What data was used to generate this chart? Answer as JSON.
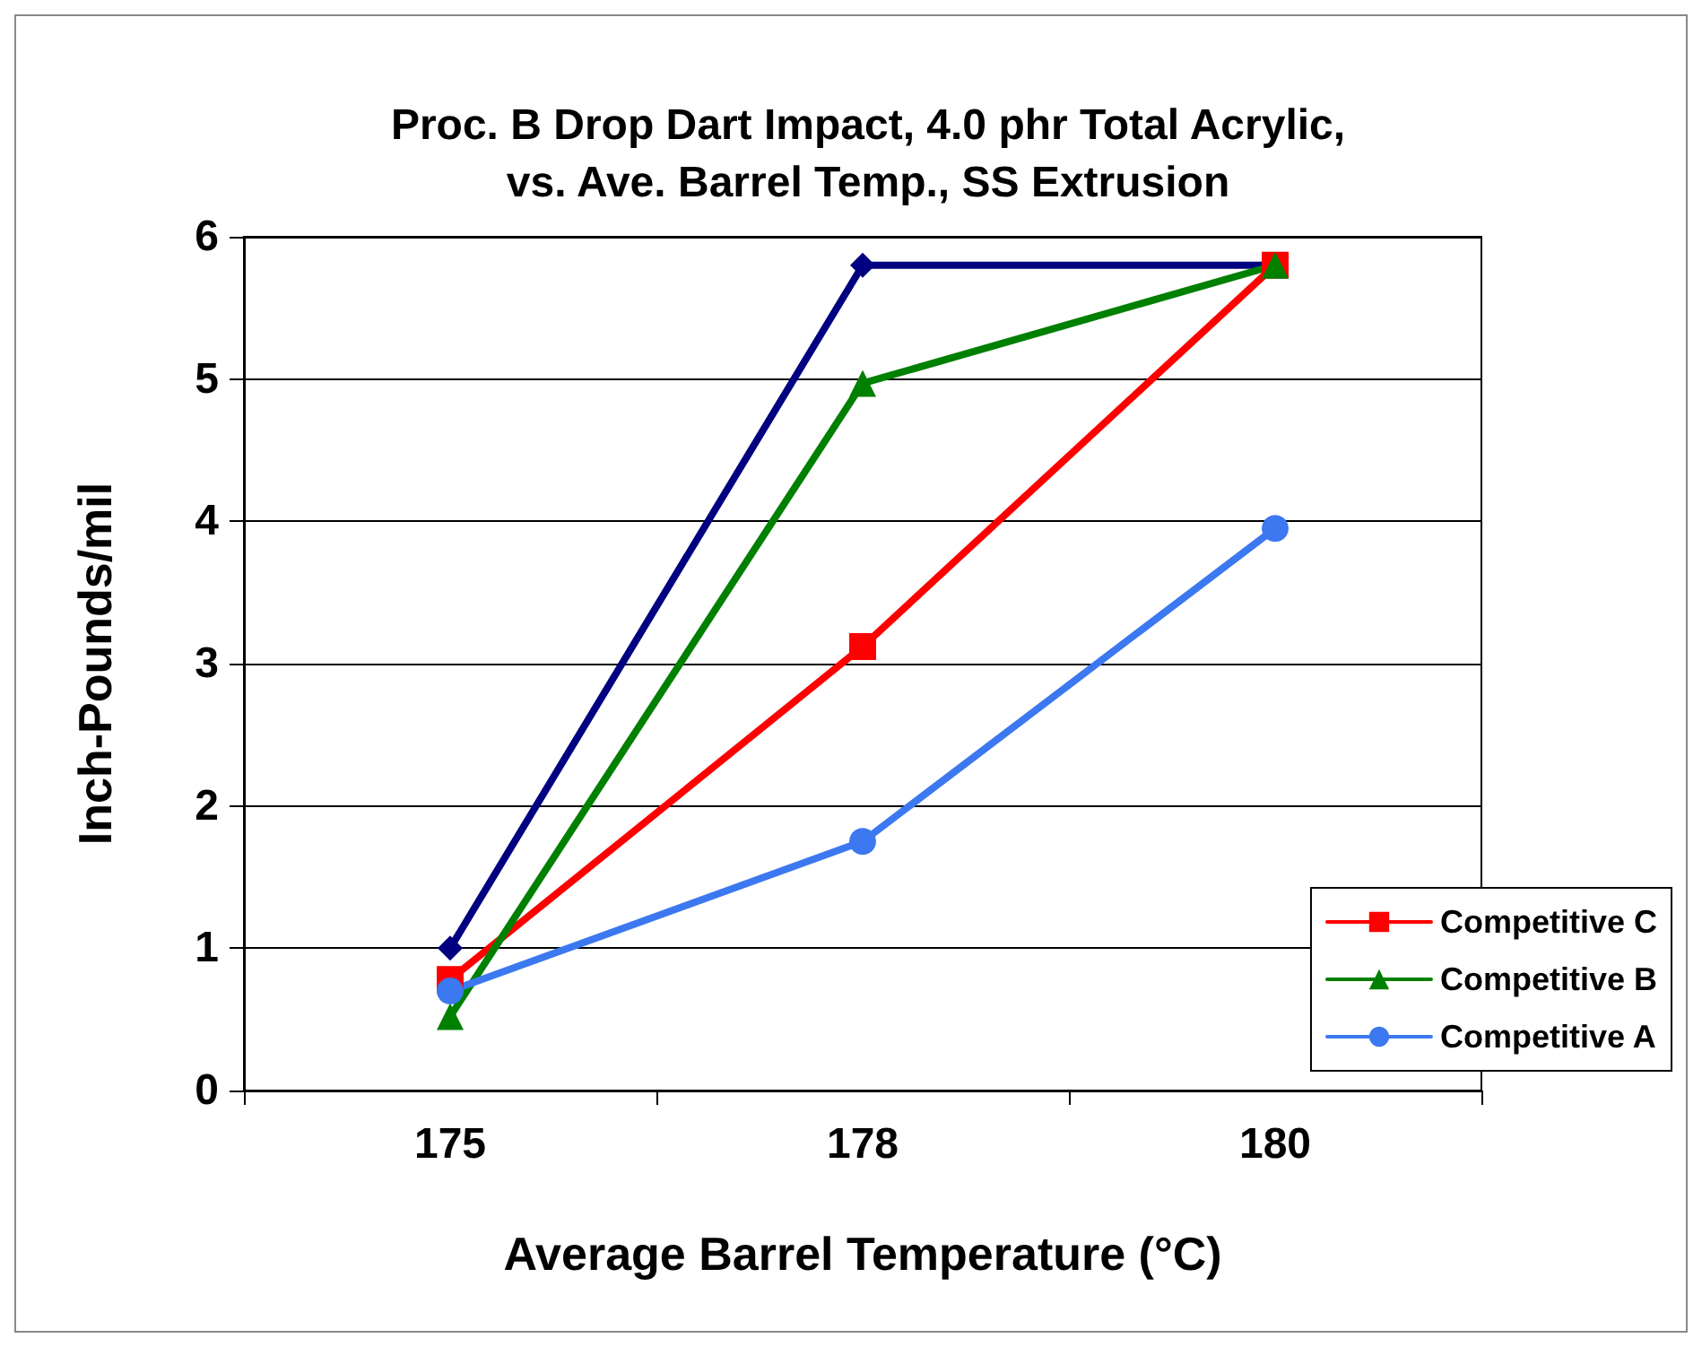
{
  "chart_data": {
    "type": "line",
    "title": "Proc. B Drop Dart Impact, 4.0 phr Total Acrylic,\nvs. Ave. Barrel Temp., SS Extrusion",
    "xlabel": "Average Barrel Temperature (°C)",
    "ylabel": "Inch-Pounds/mil",
    "categories": [
      "175",
      "178",
      "180"
    ],
    "series": [
      {
        "color": "#000080",
        "marker": "diamond",
        "values": [
          1.0,
          5.8,
          5.8
        ]
      },
      {
        "name": "Competitive C",
        "color": "#ff0000",
        "marker": "square",
        "values": [
          0.78,
          3.12,
          5.8
        ]
      },
      {
        "name": "Competitive B",
        "color": "#008000",
        "marker": "triangle",
        "values": [
          0.52,
          4.97,
          5.8
        ]
      },
      {
        "name": "Competitive A",
        "color": "#3c78f0",
        "marker": "circle",
        "values": [
          0.7,
          1.75,
          3.95
        ]
      }
    ],
    "ylim": [
      0,
      6
    ],
    "yticks": [
      0,
      1,
      2,
      3,
      4,
      5,
      6
    ],
    "grid": "y",
    "legend": "bottom right",
    "line_style": "solid"
  }
}
